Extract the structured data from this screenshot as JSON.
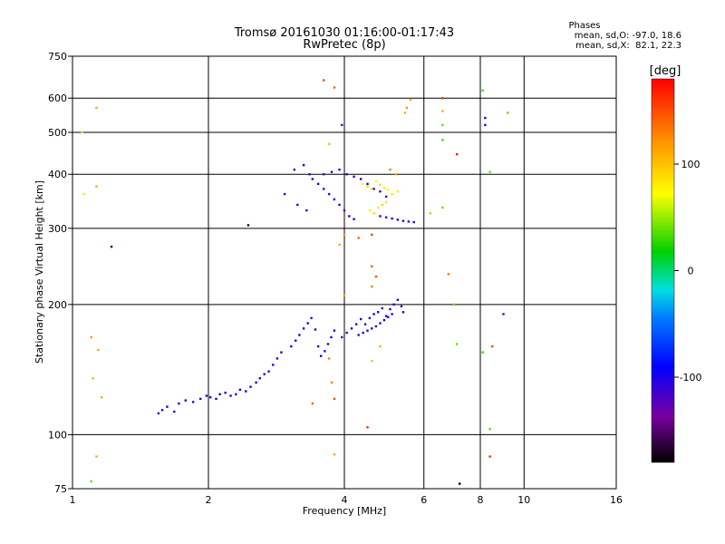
{
  "chart_data": {
    "type": "scatter",
    "title": "Tromsø 20161030 01:16:00-01:17:43",
    "subtitle": "RwPretec (8p)",
    "xlabel": "Frequency [MHz]",
    "ylabel": "Stationary phase Virtual Height [km]",
    "x_scale": "log",
    "y_scale": "log",
    "xlim": [
      1,
      16
    ],
    "ylim": [
      75,
      750
    ],
    "x_ticks": [
      1,
      2,
      4,
      6,
      8,
      10,
      16
    ],
    "y_ticks": [
      75,
      100,
      200,
      300,
      400,
      500,
      600,
      750
    ],
    "grid": true,
    "phases_box": {
      "title": "Phases",
      "line_o": "mean, sd,O: -97.0, 18.6",
      "line_x": "mean, sd,X:  82.1, 22.3"
    },
    "colorbar": {
      "label": "[deg]",
      "range": [
        -180,
        180
      ],
      "ticks": [
        100,
        0,
        -100
      ]
    },
    "series": [
      {
        "points": [
          [
            1.55,
            112,
            -105
          ],
          [
            1.58,
            114,
            -110
          ],
          [
            1.62,
            116,
            -100
          ],
          [
            1.68,
            113,
            -108
          ],
          [
            1.72,
            118,
            -95
          ],
          [
            1.78,
            120,
            -105
          ],
          [
            1.85,
            119,
            -110
          ],
          [
            1.92,
            121,
            -100
          ],
          [
            1.98,
            123,
            -104
          ],
          [
            2.02,
            122,
            -108
          ],
          [
            2.08,
            121,
            -102
          ],
          [
            2.12,
            124,
            -96
          ],
          [
            2.18,
            125,
            -104
          ],
          [
            2.24,
            123,
            -110
          ],
          [
            2.3,
            124,
            -106
          ],
          [
            2.35,
            127,
            -100
          ],
          [
            2.42,
            126,
            -95
          ],
          [
            2.48,
            129,
            -104
          ],
          [
            2.55,
            132,
            -100
          ],
          [
            2.6,
            135,
            -108
          ],
          [
            2.66,
            138,
            -105
          ],
          [
            2.72,
            140,
            -98
          ],
          [
            2.78,
            145,
            -102
          ],
          [
            2.84,
            150,
            -106
          ],
          [
            2.9,
            155,
            -100
          ],
          [
            3.05,
            160,
            -104
          ],
          [
            3.12,
            165,
            -110
          ],
          [
            3.18,
            170,
            -102
          ],
          [
            3.25,
            176,
            -98
          ],
          [
            3.32,
            181,
            -106
          ],
          [
            3.38,
            186,
            -112
          ],
          [
            3.45,
            175,
            -100
          ],
          [
            3.5,
            160,
            -105
          ],
          [
            3.55,
            152,
            -102
          ],
          [
            3.62,
            156,
            -108
          ],
          [
            3.68,
            162,
            -100
          ],
          [
            3.74,
            168,
            -104
          ],
          [
            3.8,
            174,
            -96
          ],
          [
            3.95,
            168,
            -102
          ],
          [
            4.05,
            172,
            -106
          ],
          [
            4.15,
            176,
            -100
          ],
          [
            4.25,
            180,
            -104
          ],
          [
            4.35,
            185,
            -98
          ],
          [
            4.45,
            180,
            -108
          ],
          [
            4.55,
            186,
            -100
          ],
          [
            4.65,
            190,
            -104
          ],
          [
            4.75,
            192,
            -102
          ],
          [
            4.85,
            196,
            -110
          ],
          [
            4.95,
            188,
            -104
          ],
          [
            5.05,
            195,
            -100
          ],
          [
            5.15,
            200,
            -98
          ],
          [
            5.25,
            205,
            -104
          ],
          [
            5.35,
            198,
            -106
          ],
          [
            5.4,
            192,
            -100
          ],
          [
            4.3,
            170,
            -105
          ],
          [
            4.4,
            172,
            -100
          ],
          [
            4.5,
            174,
            -110
          ],
          [
            4.6,
            176,
            -104
          ],
          [
            4.7,
            178,
            -98
          ],
          [
            4.8,
            181,
            -106
          ],
          [
            4.9,
            184,
            -102
          ],
          [
            5.0,
            187,
            -108
          ],
          [
            5.1,
            190,
            -104
          ],
          [
            3.4,
            390,
            -110
          ],
          [
            3.5,
            380,
            -104
          ],
          [
            3.6,
            370,
            -112
          ],
          [
            3.7,
            360,
            -106
          ],
          [
            3.8,
            350,
            -116
          ],
          [
            3.9,
            340,
            -110
          ],
          [
            4.0,
            330,
            -120
          ],
          [
            4.1,
            320,
            -112
          ],
          [
            4.2,
            315,
            -108
          ],
          [
            3.6,
            400,
            -115
          ],
          [
            3.75,
            405,
            -108
          ],
          [
            3.9,
            410,
            -112
          ],
          [
            4.05,
            400,
            -106
          ],
          [
            4.2,
            395,
            -110
          ],
          [
            4.35,
            390,
            -104
          ],
          [
            4.5,
            380,
            -108
          ],
          [
            4.65,
            370,
            -112
          ],
          [
            4.8,
            365,
            -106
          ],
          [
            4.95,
            355,
            -110
          ],
          [
            4.8,
            320,
            -104
          ],
          [
            4.95,
            318,
            -108
          ],
          [
            5.1,
            316,
            -102
          ],
          [
            5.25,
            314,
            -106
          ],
          [
            5.4,
            312,
            -100
          ],
          [
            5.55,
            311,
            -104
          ],
          [
            5.7,
            310,
            -102
          ],
          [
            4.4,
            380,
            80
          ],
          [
            4.5,
            375,
            90
          ],
          [
            4.6,
            370,
            85
          ],
          [
            4.7,
            385,
            75
          ],
          [
            4.8,
            378,
            88
          ],
          [
            4.9,
            372,
            82
          ],
          [
            5.0,
            368,
            78
          ],
          [
            4.55,
            330,
            80
          ],
          [
            4.65,
            325,
            85
          ],
          [
            4.75,
            335,
            78
          ],
          [
            4.85,
            340,
            90
          ],
          [
            4.95,
            345,
            82
          ],
          [
            5.1,
            360,
            86
          ],
          [
            5.25,
            365,
            80
          ],
          [
            3.1,
            410,
            -108
          ],
          [
            3.25,
            420,
            -104
          ],
          [
            3.35,
            400,
            -112
          ],
          [
            2.95,
            360,
            -106
          ],
          [
            3.15,
            340,
            -110
          ],
          [
            3.3,
            330,
            -104
          ],
          [
            2.45,
            305,
            -170
          ],
          [
            1.22,
            272,
            -160
          ],
          [
            3.6,
            660,
            150
          ],
          [
            3.8,
            635,
            140
          ],
          [
            3.95,
            520,
            -130
          ],
          [
            3.7,
            470,
            100
          ],
          [
            5.6,
            595,
            110
          ],
          [
            5.5,
            570,
            120
          ],
          [
            5.45,
            555,
            110
          ],
          [
            6.6,
            600,
            160
          ],
          [
            6.6,
            560,
            110
          ],
          [
            6.6,
            520,
            40
          ],
          [
            6.6,
            480,
            30
          ],
          [
            7.1,
            445,
            170
          ],
          [
            8.1,
            625,
            30
          ],
          [
            8.2,
            540,
            -100
          ],
          [
            8.2,
            520,
            -100
          ],
          [
            8.4,
            405,
            40
          ],
          [
            9.2,
            555,
            40
          ],
          [
            6.6,
            335,
            40
          ],
          [
            6.2,
            325,
            50
          ],
          [
            5.05,
            410,
            130
          ],
          [
            5.2,
            400,
            110
          ],
          [
            4.0,
            290,
            120
          ],
          [
            3.9,
            275,
            110
          ],
          [
            4.3,
            285,
            140
          ],
          [
            4.6,
            290,
            155
          ],
          [
            4.6,
            245,
            140
          ],
          [
            4.7,
            232,
            150
          ],
          [
            4.6,
            220,
            130
          ],
          [
            6.8,
            235,
            130
          ],
          [
            7.0,
            200,
            40
          ],
          [
            9.0,
            190,
            -130
          ],
          [
            8.5,
            160,
            150
          ],
          [
            4.0,
            210,
            110
          ],
          [
            3.7,
            150,
            130
          ],
          [
            3.75,
            132,
            130
          ],
          [
            3.4,
            118,
            140
          ],
          [
            3.8,
            121,
            150
          ],
          [
            4.5,
            104,
            160
          ],
          [
            4.6,
            148,
            100
          ],
          [
            4.8,
            160,
            110
          ],
          [
            1.06,
            360,
            80
          ],
          [
            1.05,
            500,
            90
          ],
          [
            1.13,
            570,
            110
          ],
          [
            1.13,
            375,
            110
          ],
          [
            1.1,
            168,
            120
          ],
          [
            1.14,
            157,
            110
          ],
          [
            1.11,
            135,
            50
          ],
          [
            1.16,
            122,
            110
          ],
          [
            1.1,
            78,
            40
          ],
          [
            1.13,
            89,
            110
          ],
          [
            3.8,
            90,
            110
          ],
          [
            7.1,
            162,
            40
          ],
          [
            8.1,
            155,
            30
          ],
          [
            8.4,
            103,
            40
          ],
          [
            8.4,
            89,
            160
          ],
          [
            7.2,
            77,
            -180
          ]
        ]
      }
    ]
  }
}
